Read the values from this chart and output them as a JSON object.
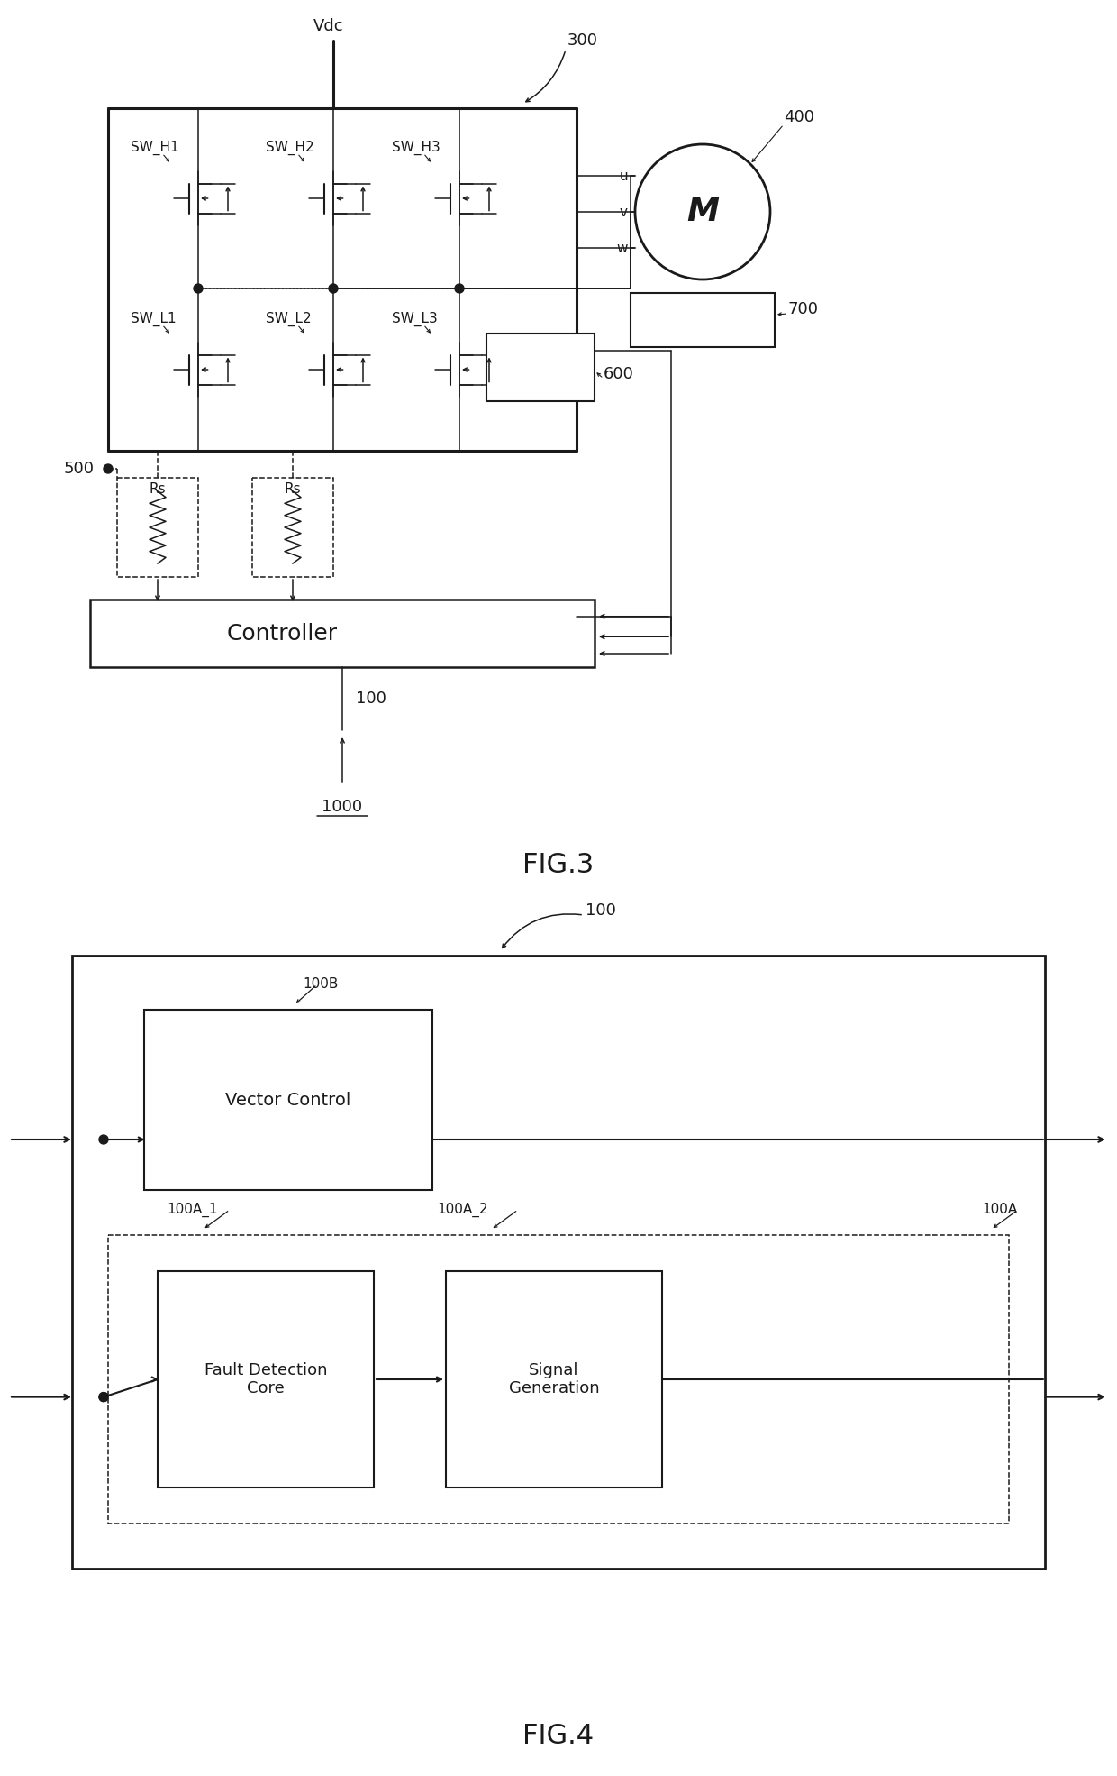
{
  "color": "#1a1a1a",
  "bg": "#ffffff",
  "fig3": {
    "title": "FIG.3",
    "vdc_label": "Vdc",
    "label_300": "300",
    "label_400": "400",
    "label_500": "500",
    "label_600": "600",
    "label_700": "700",
    "label_100": "100",
    "label_1000": "1000",
    "sw_h": [
      "SW_H1",
      "SW_H2",
      "SW_H3"
    ],
    "sw_l": [
      "SW_L1",
      "SW_L2",
      "SW_L3"
    ],
    "uvw": [
      "u",
      "v",
      "w"
    ],
    "rs_label": "Rs",
    "controller_label": "Controller",
    "motor_label": "M"
  },
  "fig4": {
    "title": "FIG.4",
    "label_100": "100",
    "label_100A": "100A",
    "label_100A_1": "100A_1",
    "label_100A_2": "100A_2",
    "label_100B": "100B",
    "vc_label": "Vector Control",
    "fdc_label": "Fault Detection\nCore",
    "sg_label": "Signal\nGeneration"
  }
}
